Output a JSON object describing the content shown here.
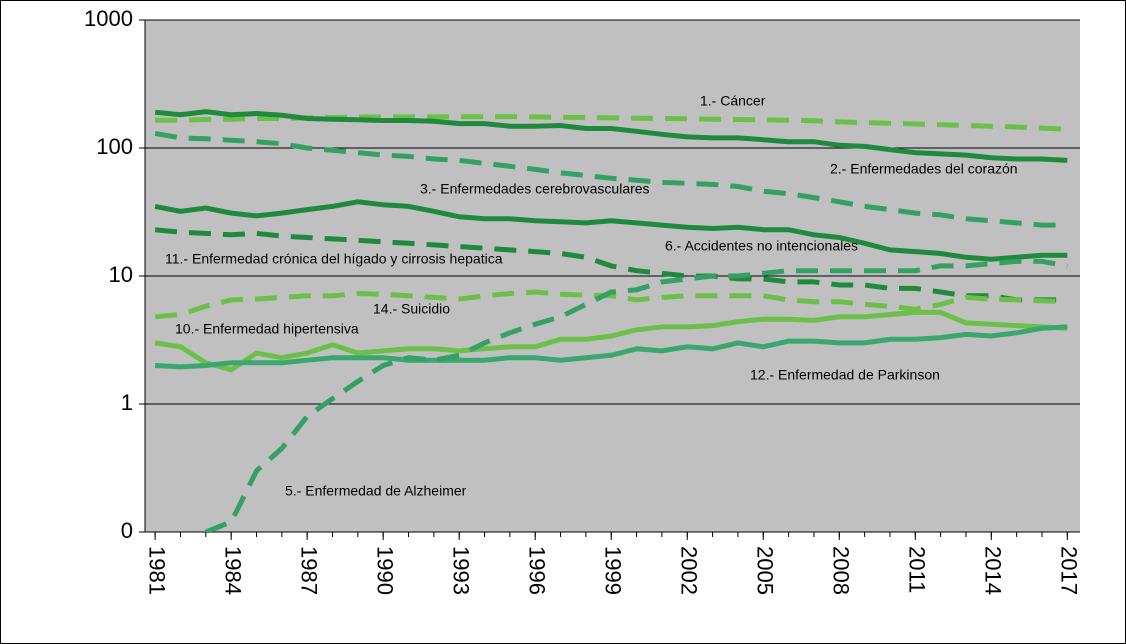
{
  "chart_data": {
    "type": "line",
    "log_y": true,
    "grid": true,
    "x": [
      1981,
      1982,
      1983,
      1984,
      1985,
      1986,
      1987,
      1988,
      1989,
      1990,
      1991,
      1992,
      1993,
      1994,
      1995,
      1996,
      1997,
      1998,
      1999,
      2000,
      2001,
      2002,
      2003,
      2004,
      2005,
      2006,
      2007,
      2008,
      2009,
      2010,
      2011,
      2012,
      2013,
      2014,
      2015,
      2016,
      2017
    ],
    "xlim": [
      1980.6,
      2017.5
    ],
    "xticks": [
      1981,
      1984,
      1987,
      1990,
      1993,
      1996,
      1999,
      2002,
      2005,
      2008,
      2011,
      2014,
      2017
    ],
    "ylim": [
      0.1,
      1000
    ],
    "yticks": [
      {
        "value": 0.1,
        "label": "0"
      },
      1,
      10,
      100,
      1000
    ],
    "series": [
      {
        "name": "1.- Cáncer",
        "color": "#6cc04a",
        "dashed": true,
        "values": [
          165,
          165,
          167,
          168,
          170,
          170,
          172,
          173,
          174,
          175,
          175,
          175,
          176,
          176,
          176,
          175,
          174,
          173,
          172,
          171,
          170,
          169,
          168,
          167,
          166,
          165,
          163,
          160,
          158,
          156,
          154,
          152,
          150,
          148,
          146,
          143,
          140
        ]
      },
      {
        "name": "2.- Enfermedades del corazón",
        "color": "#1f8a3d",
        "dashed": false,
        "values": [
          190,
          182,
          192,
          182,
          186,
          180,
          170,
          168,
          166,
          164,
          164,
          162,
          155,
          155,
          148,
          148,
          150,
          142,
          142,
          135,
          128,
          122,
          120,
          120,
          116,
          112,
          112,
          105,
          103,
          97,
          92,
          90,
          88,
          84,
          82,
          82,
          80
        ]
      },
      {
        "name": "3.- Enfermedades cerebrovasculares",
        "color": "#34a064",
        "dashed": true,
        "values": [
          130,
          120,
          118,
          115,
          112,
          108,
          100,
          96,
          92,
          88,
          86,
          82,
          80,
          76,
          72,
          68,
          64,
          61,
          58,
          56,
          54,
          53,
          52,
          50,
          46,
          44,
          41,
          38,
          35,
          33,
          31,
          30,
          28,
          27,
          26,
          25,
          25
        ]
      },
      {
        "name": "6.- Accidentes no intencionales",
        "color": "#1f8a3d",
        "dashed": false,
        "values": [
          35,
          32,
          34,
          31,
          29.5,
          31,
          33,
          35,
          38,
          36,
          35,
          32,
          29,
          28,
          28,
          27,
          26.5,
          26,
          27,
          26,
          25,
          24,
          23.5,
          24,
          23,
          23,
          21,
          20,
          18,
          16,
          15.5,
          15,
          14,
          13.5,
          14,
          14.5,
          14.5
        ]
      },
      {
        "name": "11.- Enfermedad crónica del hígado y cirrosis hepatica",
        "color": "#1f8a3d",
        "dashed": true,
        "values": [
          23,
          22,
          21.5,
          21,
          21.5,
          20.5,
          20,
          19.5,
          19,
          18.5,
          18,
          17.5,
          17,
          16.5,
          16,
          15.5,
          15,
          14,
          12,
          11,
          10.5,
          10,
          10,
          9.5,
          9.5,
          9,
          9,
          8.5,
          8.5,
          8,
          8,
          7.5,
          7,
          7,
          6.5,
          6.5,
          6.5
        ]
      },
      {
        "name": "14.- Suicidio",
        "color": "#6cc04a",
        "dashed": true,
        "values": [
          4.8,
          5,
          5.8,
          6.5,
          6.6,
          6.8,
          7,
          7,
          7.3,
          7.2,
          7,
          6.8,
          6.6,
          7,
          7.3,
          7.5,
          7.2,
          7.1,
          7,
          6.5,
          6.8,
          7,
          7,
          7,
          7,
          6.5,
          6.3,
          6.3,
          6,
          5.8,
          5.5,
          6,
          6.8,
          6.6,
          6.5,
          6.4,
          6.3
        ]
      },
      {
        "name": "10.- Enfermedad hipertensiva",
        "color": "#6cc04a",
        "dashed": false,
        "values": [
          3,
          2.8,
          2.1,
          1.85,
          2.5,
          2.3,
          2.5,
          2.9,
          2.5,
          2.6,
          2.7,
          2.7,
          2.6,
          2.7,
          2.8,
          2.8,
          3.2,
          3.2,
          3.4,
          3.8,
          4.0,
          4.0,
          4.1,
          4.4,
          4.6,
          4.6,
          4.5,
          4.8,
          4.8,
          5,
          5.2,
          5.2,
          4.3,
          4.2,
          4.1,
          4,
          3.9
        ]
      },
      {
        "name": "12.- Enfermedad de Parkinson",
        "color": "#3aa86e",
        "dashed": false,
        "values": [
          2,
          1.95,
          2,
          2.1,
          2.1,
          2.1,
          2.2,
          2.3,
          2.3,
          2.3,
          2.2,
          2.2,
          2.2,
          2.2,
          2.3,
          2.3,
          2.2,
          2.3,
          2.4,
          2.7,
          2.6,
          2.8,
          2.7,
          3.0,
          2.8,
          3.1,
          3.1,
          3.0,
          3.0,
          3.2,
          3.2,
          3.3,
          3.5,
          3.4,
          3.6,
          3.9,
          4.0
        ]
      },
      {
        "name": "5.- Enfermedad de Alzheimer",
        "color": "#34a064",
        "dashed": true,
        "values": [
          null,
          null,
          0.1,
          0.12,
          0.3,
          0.45,
          0.8,
          1.1,
          1.5,
          2.0,
          2.3,
          2.2,
          2.4,
          3.0,
          3.6,
          4.2,
          4.8,
          6,
          7.5,
          7.8,
          9,
          9.5,
          10,
          10,
          10.5,
          11,
          11,
          11,
          11,
          11,
          11,
          12,
          12,
          12.5,
          13,
          13,
          12
        ]
      }
    ]
  }
}
